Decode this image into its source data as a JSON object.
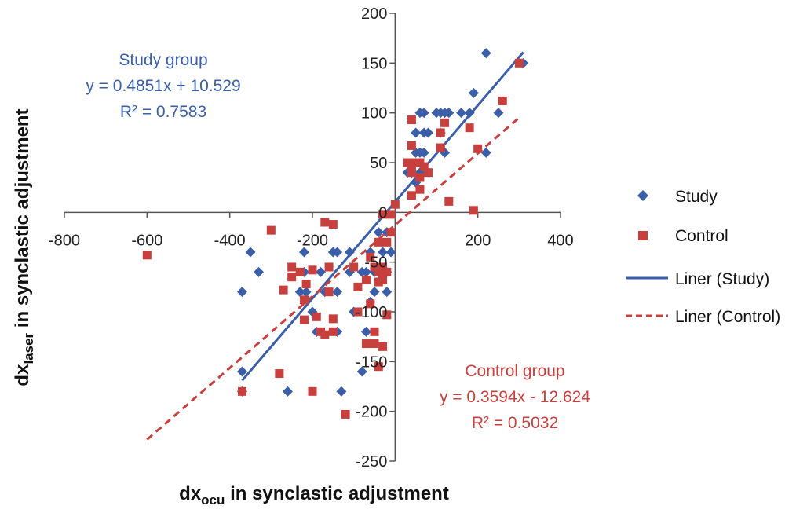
{
  "chart_data": {
    "type": "scatter",
    "xlabel": {
      "main": "dx",
      "sub": "ocu",
      "rest": " in synclastic adjustment"
    },
    "ylabel": {
      "main": "dx",
      "sub": "laser",
      "rest": " in synclastic adjustment"
    },
    "xlim": [
      -800,
      400
    ],
    "ylim": [
      -250,
      200
    ],
    "x_ticks": [
      "-800",
      "-600",
      "-400",
      "-200",
      "0",
      "200",
      "400"
    ],
    "y_ticks": [
      "200",
      "150",
      "100",
      "50",
      "0",
      "-50",
      "-100",
      "-150",
      "-200",
      "-250"
    ],
    "legend_position": "right",
    "colors": {
      "study": "#3a5fa8",
      "control": "#c8403d"
    },
    "series": [
      {
        "name": "Study",
        "marker": "diamond",
        "points": [
          [
            220,
            160
          ],
          [
            310,
            150
          ],
          [
            190,
            120
          ],
          [
            250,
            100
          ],
          [
            180,
            100
          ],
          [
            160,
            100
          ],
          [
            130,
            100
          ],
          [
            120,
            100
          ],
          [
            110,
            100
          ],
          [
            100,
            100
          ],
          [
            70,
            100
          ],
          [
            60,
            100
          ],
          [
            70,
            80
          ],
          [
            80,
            80
          ],
          [
            50,
            80
          ],
          [
            110,
            80
          ],
          [
            50,
            60
          ],
          [
            60,
            60
          ],
          [
            70,
            60
          ],
          [
            120,
            60
          ],
          [
            220,
            60
          ],
          [
            30,
            40
          ],
          [
            40,
            40
          ],
          [
            60,
            40
          ],
          [
            50,
            30
          ],
          [
            -370,
            -80
          ],
          [
            -350,
            -40
          ],
          [
            -330,
            -60
          ],
          [
            -220,
            -40
          ],
          [
            -220,
            -60
          ],
          [
            -230,
            -80
          ],
          [
            -215,
            -80
          ],
          [
            -200,
            -100
          ],
          [
            -190,
            -120
          ],
          [
            -180,
            -60
          ],
          [
            -170,
            -80
          ],
          [
            -150,
            -40
          ],
          [
            -140,
            -40
          ],
          [
            -140,
            -80
          ],
          [
            -140,
            -120
          ],
          [
            -110,
            -40
          ],
          [
            -110,
            -60
          ],
          [
            -100,
            -100
          ],
          [
            -80,
            -60
          ],
          [
            -80,
            -160
          ],
          [
            -70,
            -60
          ],
          [
            -70,
            -120
          ],
          [
            -60,
            -40
          ],
          [
            -60,
            -90
          ],
          [
            -50,
            -60
          ],
          [
            -50,
            -80
          ],
          [
            -40,
            -20
          ],
          [
            -40,
            -60
          ],
          [
            -30,
            -40
          ],
          [
            -20,
            -20
          ],
          [
            -10,
            -40
          ],
          [
            -370,
            -160
          ],
          [
            -370,
            -180
          ],
          [
            -260,
            -180
          ],
          [
            -130,
            -180
          ],
          [
            -20,
            -80
          ],
          [
            -20,
            -60
          ]
        ]
      },
      {
        "name": "Control",
        "marker": "square",
        "points": [
          [
            300,
            150
          ],
          [
            260,
            112
          ],
          [
            40,
            93
          ],
          [
            120,
            90
          ],
          [
            180,
            85
          ],
          [
            110,
            80
          ],
          [
            40,
            67
          ],
          [
            110,
            65
          ],
          [
            200,
            64
          ],
          [
            30,
            50
          ],
          [
            50,
            50
          ],
          [
            60,
            50
          ],
          [
            40,
            46
          ],
          [
            70,
            46
          ],
          [
            40,
            40
          ],
          [
            80,
            40
          ],
          [
            60,
            35
          ],
          [
            60,
            23
          ],
          [
            40,
            17
          ],
          [
            130,
            11
          ],
          [
            0,
            8
          ],
          [
            190,
            2
          ],
          [
            -30,
            -2
          ],
          [
            -10,
            -2
          ],
          [
            -10,
            -20
          ],
          [
            -600,
            -43
          ],
          [
            -300,
            -18
          ],
          [
            -170,
            -10
          ],
          [
            -150,
            -12
          ],
          [
            -40,
            -30
          ],
          [
            -20,
            -30
          ],
          [
            -250,
            -55
          ],
          [
            -230,
            -60
          ],
          [
            -200,
            -58
          ],
          [
            -160,
            -55
          ],
          [
            -100,
            -55
          ],
          [
            -60,
            -45
          ],
          [
            -50,
            -55
          ],
          [
            -40,
            -60
          ],
          [
            -30,
            -55
          ],
          [
            -20,
            -60
          ],
          [
            -40,
            -70
          ],
          [
            -270,
            -78
          ],
          [
            -250,
            -65
          ],
          [
            -215,
            -72
          ],
          [
            -160,
            -80
          ],
          [
            -90,
            -75
          ],
          [
            -70,
            -68
          ],
          [
            -30,
            -68
          ],
          [
            -220,
            -88
          ],
          [
            -220,
            -108
          ],
          [
            -190,
            -105
          ],
          [
            -150,
            -107
          ],
          [
            -90,
            -100
          ],
          [
            -60,
            -92
          ],
          [
            -20,
            -103
          ],
          [
            -180,
            -120
          ],
          [
            -170,
            -123
          ],
          [
            -150,
            -120
          ],
          [
            -70,
            -132
          ],
          [
            -50,
            -132
          ],
          [
            -50,
            -120
          ],
          [
            -40,
            -155
          ],
          [
            -30,
            -135
          ],
          [
            -280,
            -162
          ],
          [
            -370,
            -180
          ],
          [
            -200,
            -180
          ],
          [
            -120,
            -203
          ]
        ]
      }
    ],
    "trendlines": [
      {
        "label": "Liner (Study)",
        "series": "Study",
        "slope": 0.4851,
        "intercept": 10.529,
        "x_range": [
          -370,
          310
        ],
        "style": "solid"
      },
      {
        "label": "Liner (Control)",
        "series": "Control",
        "slope": 0.3594,
        "intercept": -12.624,
        "x_range": [
          -600,
          300
        ],
        "style": "dashed"
      }
    ],
    "annotations": [
      {
        "key": "study",
        "lines": [
          "Study group",
          "y = 0.4851x + 10.529",
          "R² = 0.7583"
        ]
      },
      {
        "key": "control",
        "lines": [
          "Control group",
          "y = 0.3594x - 12.624",
          "R² = 0.5032"
        ]
      }
    ]
  }
}
